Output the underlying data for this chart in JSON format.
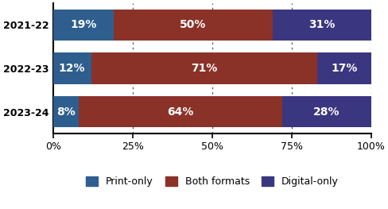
{
  "years": [
    "2021-22",
    "2022-23",
    "2023-24"
  ],
  "print_only": [
    19,
    12,
    8
  ],
  "both_formats": [
    50,
    71,
    64
  ],
  "digital_only": [
    31,
    17,
    28
  ],
  "colors": {
    "print_only": "#2E5E8E",
    "both_formats": "#8B3228",
    "digital_only": "#3B3680"
  },
  "legend_labels": [
    "Print-only",
    "Both formats",
    "Digital-only"
  ],
  "xlim": [
    0,
    100
  ],
  "xticks": [
    0,
    25,
    50,
    75,
    100
  ],
  "xtick_labels": [
    "0%",
    "25%",
    "50%",
    "75%",
    "100%"
  ],
  "bar_height": 0.72,
  "background_color": "#ffffff",
  "text_color": "#ffffff",
  "label_fontsize": 10,
  "tick_fontsize": 9,
  "legend_fontsize": 9,
  "ytick_fontsize": 9
}
